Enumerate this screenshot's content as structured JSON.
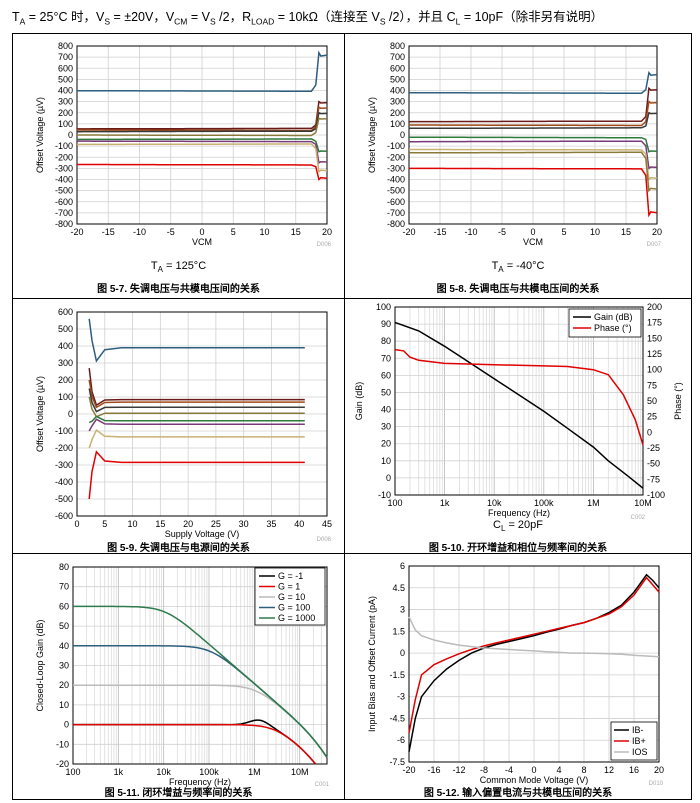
{
  "header": {
    "p1": "T",
    "s1": "A",
    "p2": " = 25°C 时，V",
    "s2": "S",
    "p3": " = ±20V，V",
    "s3": "CM",
    "p4": " = V",
    "s4": "S",
    "p5": " /2，R",
    "s5": "LOAD",
    "p6": " = 10kΩ（连接至 V",
    "s6": "S",
    "p7": " /2），并且 C",
    "s7": "L",
    "p8": " = 10pF（除非另有说明）"
  },
  "panels": [
    {
      "id": "fig-5-7",
      "caption": "图 5-7. 失调电压与共模电压间的关系",
      "condition": {
        "main": "T",
        "sub": "A",
        "rest": " = 125°C"
      },
      "code": "D006"
    },
    {
      "id": "fig-5-8",
      "caption": "图 5-8. 失调电压与共模电压间的关系",
      "condition": {
        "main": "T",
        "sub": "A",
        "rest": " = -40°C"
      },
      "code": "D007"
    },
    {
      "id": "fig-5-9",
      "caption": "图 5-9. 失调电压与电源间的关系",
      "condition": null,
      "code": "D008"
    },
    {
      "id": "fig-5-10",
      "caption": "图 5-10. 开环增益和相位与频率间的关系",
      "condition": {
        "main": "C",
        "sub": "L",
        "rest": " = 20pF"
      },
      "code": "C002"
    },
    {
      "id": "fig-5-11",
      "caption": "图 5-11. 闭环增益与频率间的关系",
      "condition": null,
      "code": "C001"
    },
    {
      "id": "fig-5-12",
      "caption": "图 5-12. 输入偏置电流与共模电压间的关系",
      "condition": null,
      "code": "D010"
    }
  ],
  "chart_data": [
    {
      "type": "line",
      "title": "",
      "xlabel": "VCM",
      "ylabel": "Offset Voltage (µV)",
      "xlim": [
        -20,
        20
      ],
      "ylim": [
        -800,
        800
      ],
      "xticks": [
        -20,
        -15,
        -10,
        -5,
        0,
        5,
        10,
        15,
        20
      ],
      "yticks": [
        -800,
        -700,
        -600,
        -500,
        -400,
        -300,
        -200,
        -100,
        0,
        100,
        200,
        300,
        400,
        500,
        600,
        700,
        800
      ],
      "grid": true,
      "series": [
        {
          "name": "s1",
          "color": "#2e5e7e",
          "base": 398,
          "end": 740,
          "dip": 0
        },
        {
          "name": "s2",
          "color": "#6b1a1a",
          "base": 55,
          "end": 300,
          "dip": 0
        },
        {
          "name": "s3",
          "color": "#a04a1a",
          "base": 45,
          "end": 250,
          "dip": 0
        },
        {
          "name": "s4",
          "color": "#3a3a3a",
          "base": 30,
          "end": 200,
          "dip": 0
        },
        {
          "name": "s5",
          "color": "#8a7a3a",
          "base": 0,
          "end": 150,
          "dip": 0
        },
        {
          "name": "s6",
          "color": "#2e7a3a",
          "base": -40,
          "end": -150,
          "dip": 0
        },
        {
          "name": "s7",
          "color": "#7a3a7a",
          "base": -55,
          "end": -250,
          "dip": 0
        },
        {
          "name": "s8",
          "color": "#c8b070",
          "base": -85,
          "end": -330,
          "dip": 0
        },
        {
          "name": "s9",
          "color": "#e00000",
          "base": -265,
          "end": -400,
          "dip": 0
        }
      ]
    },
    {
      "type": "line",
      "title": "",
      "xlabel": "VCM",
      "ylabel": "Offset Voltage (µV)",
      "xlim": [
        -20,
        20
      ],
      "ylim": [
        -800,
        800
      ],
      "xticks": [
        -20,
        -15,
        -10,
        -5,
        0,
        5,
        10,
        15,
        20
      ],
      "yticks": [
        -800,
        -700,
        -600,
        -500,
        -400,
        -300,
        -200,
        -100,
        0,
        100,
        200,
        300,
        400,
        500,
        600,
        700,
        800
      ],
      "grid": true,
      "series": [
        {
          "name": "s1",
          "color": "#2e5e7e",
          "base": 380,
          "end": 560
        },
        {
          "name": "s2",
          "color": "#6b1a1a",
          "base": 120,
          "end": 420
        },
        {
          "name": "s3",
          "color": "#a04a1a",
          "base": 90,
          "end": 300
        },
        {
          "name": "s4",
          "color": "#3a3a3a",
          "base": 60,
          "end": 200
        },
        {
          "name": "s5",
          "color": "#2e7a3a",
          "base": -20,
          "end": -150
        },
        {
          "name": "s6",
          "color": "#7a3a7a",
          "base": -60,
          "end": -300
        },
        {
          "name": "s7",
          "color": "#c8b070",
          "base": -130,
          "end": -400
        },
        {
          "name": "s8",
          "color": "#8a7a3a",
          "base": -160,
          "end": -500
        },
        {
          "name": "s9",
          "color": "#e00000",
          "base": -300,
          "end": -720
        }
      ]
    },
    {
      "type": "line",
      "title": "",
      "xlabel": "Supply Voltage (V)",
      "ylabel": "Offset Voltage (µV)",
      "xlim": [
        0,
        45
      ],
      "ylim": [
        -600,
        600
      ],
      "xticks": [
        0,
        5,
        10,
        15,
        20,
        25,
        30,
        35,
        40,
        45
      ],
      "yticks": [
        -600,
        -500,
        -400,
        -300,
        -200,
        -100,
        0,
        100,
        200,
        300,
        400,
        500,
        600
      ],
      "grid": true,
      "series": [
        {
          "name": "s1",
          "color": "#2e5e7e",
          "start": 560,
          "base": 390
        },
        {
          "name": "s2",
          "color": "#6b1a1a",
          "start": 270,
          "base": 85
        },
        {
          "name": "s3",
          "color": "#a04a1a",
          "start": 200,
          "base": 70
        },
        {
          "name": "s4",
          "color": "#3a3a3a",
          "start": 150,
          "base": 40
        },
        {
          "name": "s5",
          "color": "#8a7a3a",
          "start": 100,
          "base": 5
        },
        {
          "name": "s6",
          "color": "#2e7a3a",
          "start": -50,
          "base": -40
        },
        {
          "name": "s7",
          "color": "#7a3a7a",
          "start": -100,
          "base": -60
        },
        {
          "name": "s8",
          "color": "#c8b070",
          "start": -200,
          "base": -135
        },
        {
          "name": "s9",
          "color": "#e00000",
          "start": -500,
          "base": -285
        }
      ]
    },
    {
      "type": "line",
      "title": "",
      "xlabel": "Frequency (Hz)",
      "ylabel": "Gain (dB)",
      "y2label": "Phase (°)",
      "xscale": "log",
      "xlim": [
        100,
        10000000
      ],
      "ylim": [
        -10,
        100
      ],
      "y2lim": [
        -100,
        200
      ],
      "xticklabels": [
        "100",
        "1k",
        "10k",
        "100k",
        "1M",
        "10M"
      ],
      "yticks": [
        -10,
        0,
        10,
        20,
        30,
        40,
        50,
        60,
        70,
        80,
        90,
        100
      ],
      "y2ticks": [
        -100,
        -75,
        -50,
        -25,
        0,
        25,
        50,
        75,
        100,
        125,
        150,
        175,
        200
      ],
      "legend": "top-right",
      "grid": true,
      "series": [
        {
          "name": "Gain (dB)",
          "color": "#000000",
          "axis": "left",
          "x": [
            100,
            300,
            1000,
            3000,
            10000,
            30000,
            100000,
            300000,
            1000000,
            2000000,
            5000000,
            10000000
          ],
          "y": [
            91,
            86,
            77,
            68,
            58,
            49,
            39,
            29,
            18,
            10,
            1,
            -6
          ]
        },
        {
          "name": "Phase (°)",
          "color": "#e00000",
          "axis": "right",
          "x": [
            100,
            150,
            200,
            300,
            1000,
            3000,
            10000,
            30000,
            100000,
            300000,
            1000000,
            2000000,
            4000000,
            7000000,
            10000000
          ],
          "y": [
            132,
            130,
            120,
            115,
            110,
            109,
            108,
            107,
            106,
            105,
            100,
            92,
            60,
            20,
            -20
          ]
        }
      ]
    },
    {
      "type": "line",
      "title": "",
      "xlabel": "Frequency (Hz)",
      "ylabel": "Closed-Loop Gain (dB)",
      "xscale": "log",
      "xlim": [
        100,
        40000000
      ],
      "ylim": [
        -20,
        80
      ],
      "xticklabels": [
        "100",
        "1k",
        "10k",
        "100k",
        "1M",
        "10M"
      ],
      "yticks": [
        -20,
        -10,
        0,
        10,
        20,
        30,
        40,
        50,
        60,
        70,
        80
      ],
      "legend": "top-right",
      "grid": true,
      "series": [
        {
          "name": "G = -1",
          "color": "#000000",
          "gain": 0,
          "pk": 3
        },
        {
          "name": "G = 1",
          "color": "#e00000",
          "gain": 0,
          "pk": 0
        },
        {
          "name": "G = 10",
          "color": "#bbbbbb",
          "gain": 20,
          "pk": 0
        },
        {
          "name": "G = 100",
          "color": "#2e5e7e",
          "gain": 40,
          "pk": 0
        },
        {
          "name": "G = 1000",
          "color": "#2e7a4a",
          "gain": 60,
          "pk": 0
        }
      ]
    },
    {
      "type": "line",
      "title": "",
      "xlabel": "Common Mode Voltage (V)",
      "ylabel": "Input Bias and Offset Current (pA)",
      "xlim": [
        -20,
        20
      ],
      "ylim": [
        -7.5,
        6
      ],
      "xticks": [
        -20,
        -16,
        -12,
        -8,
        -4,
        0,
        4,
        8,
        12,
        16,
        20
      ],
      "yticks": [
        -7.5,
        -6,
        -4.5,
        -3,
        -1.5,
        0,
        1.5,
        3,
        4.5,
        6
      ],
      "legend": "bottom-right",
      "grid": true,
      "series": [
        {
          "name": "IB-",
          "color": "#000000",
          "x": [
            -20,
            -19,
            -18,
            -16,
            -14,
            -12,
            -10,
            -8,
            -6,
            -4,
            -2,
            0,
            2,
            4,
            6,
            8,
            10,
            12,
            14,
            16,
            17,
            18,
            19,
            20
          ],
          "y": [
            -6.8,
            -4.5,
            -3,
            -1.9,
            -1.1,
            -0.5,
            0,
            0.35,
            0.6,
            0.8,
            1.0,
            1.2,
            1.45,
            1.65,
            1.9,
            2.1,
            2.4,
            2.8,
            3.3,
            4.2,
            4.8,
            5.4,
            5.0,
            4.5
          ]
        },
        {
          "name": "IB+",
          "color": "#e00000",
          "x": [
            -20,
            -19,
            -18,
            -16,
            -14,
            -12,
            -10,
            -8,
            -6,
            -4,
            -2,
            0,
            2,
            4,
            6,
            8,
            10,
            12,
            14,
            16,
            17,
            18,
            19,
            20
          ],
          "y": [
            -5.5,
            -3.2,
            -1.5,
            -0.8,
            -0.4,
            -0.05,
            0.25,
            0.5,
            0.7,
            0.9,
            1.1,
            1.3,
            1.5,
            1.7,
            1.9,
            2.1,
            2.4,
            2.7,
            3.2,
            4.0,
            4.6,
            5.2,
            4.7,
            4.2
          ]
        },
        {
          "name": "IOS",
          "color": "#bbbbbb",
          "x": [
            -20,
            -19,
            -18,
            -16,
            -14,
            -12,
            -10,
            -8,
            -6,
            -4,
            -2,
            0,
            2,
            4,
            6,
            8,
            10,
            12,
            14,
            16,
            18,
            20
          ],
          "y": [
            2.5,
            1.6,
            1.2,
            0.9,
            0.7,
            0.55,
            0.45,
            0.35,
            0.3,
            0.25,
            0.2,
            0.15,
            0.1,
            0.05,
            0,
            0,
            -0.02,
            -0.05,
            -0.08,
            -0.15,
            -0.2,
            -0.25
          ]
        }
      ]
    }
  ]
}
